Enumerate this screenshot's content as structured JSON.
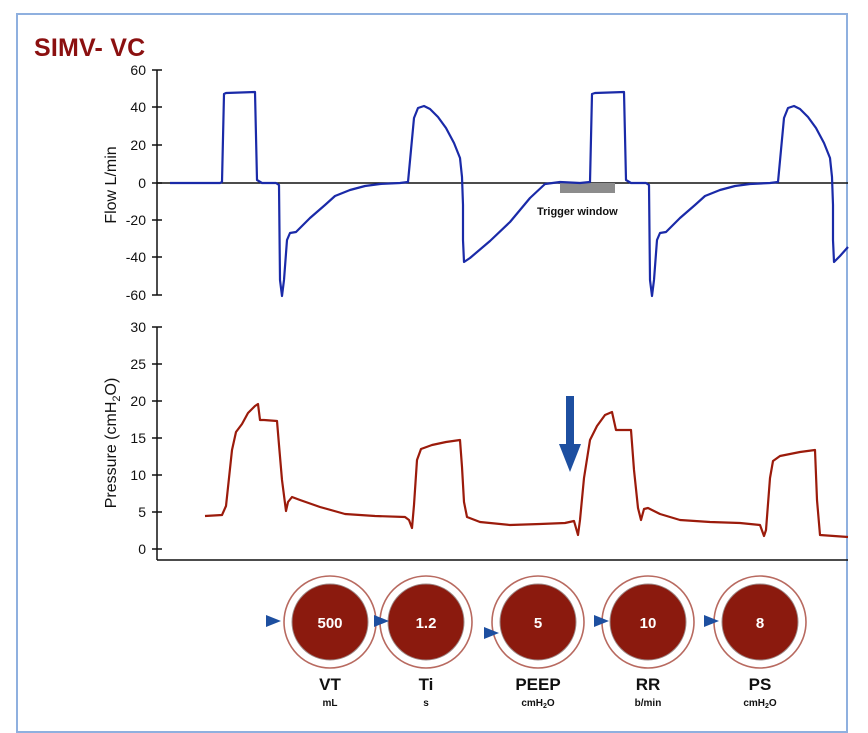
{
  "title": "SIMV- VC",
  "flow_chart": {
    "ylabel": "Flow L/min",
    "ticks": [
      "60",
      "40",
      "20",
      "0",
      "-20",
      "-40",
      "-60"
    ],
    "annotation": "Trigger window"
  },
  "pressure_chart": {
    "ylabel_main": "Pressure (cmH",
    "ylabel_sub": "2",
    "ylabel_end": "O)",
    "ticks": [
      "30",
      "25",
      "20",
      "15",
      "10",
      "5",
      "0"
    ]
  },
  "knobs": [
    {
      "value": "500",
      "name": "VT",
      "unit_main": "mL",
      "unit_sub": "",
      "unit_end": ""
    },
    {
      "value": "1.2",
      "name": "Ti",
      "unit_main": "s",
      "unit_sub": "",
      "unit_end": ""
    },
    {
      "value": "5",
      "name": "PEEP",
      "unit_main": "cmH",
      "unit_sub": "2",
      "unit_end": "O"
    },
    {
      "value": "10",
      "name": "RR",
      "unit_main": "b/min",
      "unit_sub": "",
      "unit_end": ""
    },
    {
      "value": "8",
      "name": "PS",
      "unit_main": "cmH",
      "unit_sub": "2",
      "unit_end": "O"
    }
  ],
  "colors": {
    "title": "#8b1010",
    "flow_trace": "#1a2aa8",
    "pressure_trace": "#9b1b0b",
    "trigger_window": "#8c8c8c",
    "arrow": "#1d4fa0",
    "knob_fill": "#8b1a0e",
    "knob_ring": "#b86a60",
    "frame_border": "#8fb0df"
  }
}
